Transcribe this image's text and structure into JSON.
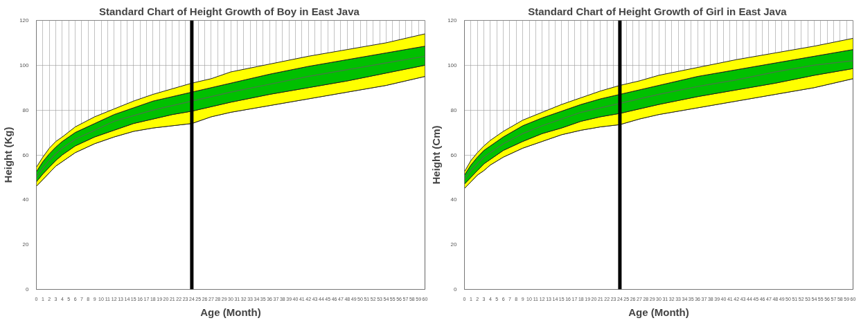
{
  "chart_data": [
    {
      "type": "area",
      "stacked": true,
      "title": "Standard  Chart of Height Growth of Boy in East Java",
      "xlabel": "Age (Month)",
      "ylabel": "Height (Kg)",
      "x": [
        0,
        1,
        2,
        3,
        4,
        6,
        9,
        12,
        15,
        18,
        21,
        24,
        27,
        30,
        36,
        42,
        48,
        54,
        60
      ],
      "series": [
        {
          "color": "#ffffff",
          "values": [
            46,
            49,
            52,
            55,
            57,
            61,
            65,
            68,
            70.5,
            72,
            73,
            74,
            77,
            79,
            82,
            85,
            88,
            91,
            95
          ]
        },
        {
          "color": "#ffff00",
          "values": [
            2,
            2.5,
            2.5,
            2.5,
            3,
            3,
            3,
            3,
            3.5,
            4,
            5,
            5.5,
            4.5,
            4.5,
            5,
            5,
            5,
            5.5,
            5
          ]
        },
        {
          "color": "#00c000",
          "values": [
            4.5,
            5.5,
            6,
            6,
            6,
            6,
            6,
            7,
            7,
            8,
            8,
            8.5,
            8.5,
            8.5,
            9,
            9.5,
            9.5,
            9,
            8.5
          ]
        },
        {
          "color": "#ffff00",
          "values": [
            2,
            2,
            2.5,
            2.5,
            2,
            2.5,
            3,
            2.5,
            3,
            3,
            3.5,
            4,
            4,
            5,
            4.5,
            4.5,
            4.5,
            4.5,
            5.5
          ]
        },
        {
          "type": "line",
          "color": "#3f7f3f",
          "values": [
            50,
            54,
            57.5,
            60.5,
            63,
            67,
            71,
            75,
            77.5,
            80,
            82,
            84,
            86,
            88,
            91.5,
            95,
            98,
            101,
            104
          ]
        }
      ],
      "ref_lines": [
        {
          "axis": "x",
          "value": 24,
          "color": "#000000"
        }
      ],
      "xlim": [
        0,
        60
      ],
      "ylim": [
        0,
        120
      ],
      "xticks": [
        0,
        1,
        2,
        3,
        4,
        5,
        6,
        7,
        8,
        9,
        10,
        11,
        12,
        13,
        14,
        15,
        16,
        17,
        18,
        19,
        20,
        21,
        22,
        23,
        24,
        25,
        26,
        27,
        28,
        29,
        30,
        31,
        32,
        33,
        34,
        35,
        36,
        37,
        38,
        39,
        40,
        41,
        42,
        43,
        44,
        45,
        46,
        47,
        48,
        49,
        50,
        51,
        52,
        53,
        54,
        55,
        56,
        57,
        58,
        59,
        60
      ],
      "yticks": [
        0,
        20,
        40,
        60,
        80,
        100,
        120
      ],
      "grid": true
    },
    {
      "type": "area",
      "stacked": true,
      "title": "Standard  Chart of Height Growth of Girl in East Java",
      "xlabel": "Age (Month)",
      "ylabel": "Height (Cm)",
      "x": [
        0,
        1,
        2,
        3,
        4,
        6,
        9,
        12,
        15,
        18,
        21,
        24,
        27,
        30,
        36,
        42,
        48,
        54,
        60
      ],
      "series": [
        {
          "color": "#ffffff",
          "values": [
            45,
            48,
            51,
            53,
            55.5,
            59,
            63,
            66,
            69,
            71,
            72.5,
            73.5,
            76,
            78,
            81,
            84,
            87,
            90,
            94
          ]
        },
        {
          "color": "#ffff00",
          "values": [
            2,
            2,
            2,
            3,
            2.5,
            3,
            3,
            3.5,
            3,
            4,
            4.5,
            5,
            4.5,
            4.5,
            5,
            5,
            5,
            5.5,
            4.5
          ]
        },
        {
          "color": "#00c000",
          "values": [
            4,
            5.5,
            6,
            6,
            6,
            6,
            7,
            7,
            7.5,
            7.5,
            8,
            8.5,
            8.5,
            8.5,
            9,
            9,
            9,
            8.5,
            8.5
          ]
        },
        {
          "color": "#ffff00",
          "values": [
            1.5,
            2,
            2,
            2,
            2.5,
            2.5,
            2.5,
            2.5,
            3,
            3,
            3.5,
            4,
            4,
            4.5,
            4,
            4.5,
            4.5,
            4.5,
            5
          ]
        },
        {
          "type": "line",
          "color": "#3f7f3f",
          "values": [
            49,
            53,
            56,
            59,
            61,
            65,
            69.5,
            73,
            76,
            79,
            81,
            83,
            85,
            87,
            90.5,
            93.5,
            97,
            100,
            102
          ]
        }
      ],
      "ref_lines": [
        {
          "axis": "x",
          "value": 24,
          "color": "#000000"
        }
      ],
      "xlim": [
        0,
        60
      ],
      "ylim": [
        0,
        120
      ],
      "xticks": [
        0,
        1,
        2,
        3,
        4,
        5,
        6,
        7,
        8,
        9,
        10,
        11,
        12,
        13,
        14,
        15,
        16,
        17,
        18,
        19,
        20,
        21,
        22,
        23,
        24,
        25,
        26,
        27,
        28,
        29,
        30,
        31,
        32,
        33,
        34,
        35,
        36,
        37,
        38,
        39,
        40,
        41,
        42,
        43,
        44,
        45,
        46,
        47,
        48,
        49,
        50,
        51,
        52,
        53,
        54,
        55,
        56,
        57,
        58,
        59,
        60
      ],
      "yticks": [
        0,
        20,
        40,
        60,
        80,
        100,
        120
      ],
      "grid": true
    }
  ]
}
